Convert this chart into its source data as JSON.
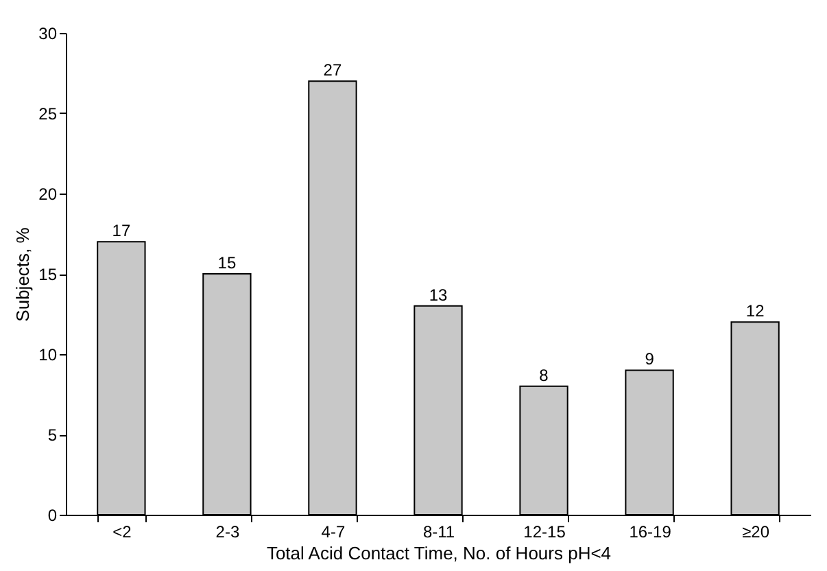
{
  "chart_data": {
    "type": "bar",
    "xlabel": "Total Acid Contact Time, No. of Hours pH<4",
    "ylabel": "Subjects, %",
    "categories": [
      "<2",
      "2-3",
      "4-7",
      "8-11",
      "12-15",
      "16-19",
      "≥20"
    ],
    "values": [
      17,
      15,
      27,
      13,
      8,
      9,
      12
    ],
    "color": "#c8c8c8",
    "ylim": [
      0,
      30
    ],
    "yticks": [
      0,
      5,
      10,
      15,
      20,
      25,
      30
    ],
    "grid": false,
    "data_labels": true
  }
}
